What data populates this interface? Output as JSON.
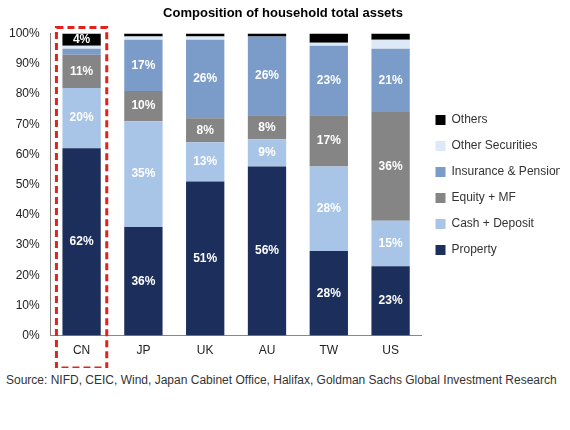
{
  "chart_data": {
    "type": "bar",
    "title": "Composition of household total assets",
    "source": "Source: NIFD, CEIC, Wind, Japan Cabinet Office, Halifax, Goldman Sachs Global Investment Research",
    "categories": [
      "CN",
      "JP",
      "UK",
      "AU",
      "TW",
      "US"
    ],
    "series": [
      {
        "name": "Property",
        "color": "#1c2f5c",
        "values": [
          62,
          36,
          51,
          56,
          28,
          23
        ],
        "value_labels": [
          "62%",
          "36%",
          "51%",
          "56%",
          "28%",
          "23%"
        ]
      },
      {
        "name": "Cash + Deposit",
        "color": "#a8c4e6",
        "values": [
          20,
          35,
          13,
          9,
          28,
          15
        ],
        "value_labels": [
          "20%",
          "35%",
          "13%",
          "9%",
          "28%",
          "15%"
        ]
      },
      {
        "name": "Equity + MF",
        "color": "#858585",
        "values": [
          11,
          10,
          8,
          8,
          17,
          36
        ],
        "value_labels": [
          "11%",
          "10%",
          "8%",
          "8%",
          "17%",
          "36%"
        ]
      },
      {
        "name": "Insurance & Pension",
        "color": "#7b9cc8",
        "values": [
          2,
          17,
          26,
          26,
          23,
          21
        ],
        "value_labels": [
          null,
          "17%",
          "26%",
          "26%",
          "23%",
          "21%"
        ]
      },
      {
        "name": "Other Securities",
        "color": "#dde9f6",
        "values": [
          1,
          1,
          1,
          0,
          1,
          3
        ],
        "value_labels": [
          null,
          null,
          null,
          null,
          null,
          null
        ]
      },
      {
        "name": "Others",
        "color": "#000000",
        "values": [
          4,
          1,
          1,
          1,
          3,
          2
        ],
        "value_labels": [
          "4%",
          null,
          null,
          null,
          null,
          null
        ]
      }
    ],
    "stacked": true,
    "data_labels": true,
    "legend": "right",
    "grid": false,
    "ylim": [
      0,
      100
    ],
    "yticks": [
      {
        "value": 0,
        "label": "0%"
      },
      {
        "value": 10,
        "label": "10%"
      },
      {
        "value": 20,
        "label": "20%"
      },
      {
        "value": 30,
        "label": "30%"
      },
      {
        "value": 40,
        "label": "40%"
      },
      {
        "value": 50,
        "label": "50%"
      },
      {
        "value": 60,
        "label": "60%"
      },
      {
        "value": 70,
        "label": "70%"
      },
      {
        "value": 80,
        "label": "80%"
      },
      {
        "value": 90,
        "label": "90%"
      },
      {
        "value": 100,
        "label": "100%"
      }
    ]
  }
}
